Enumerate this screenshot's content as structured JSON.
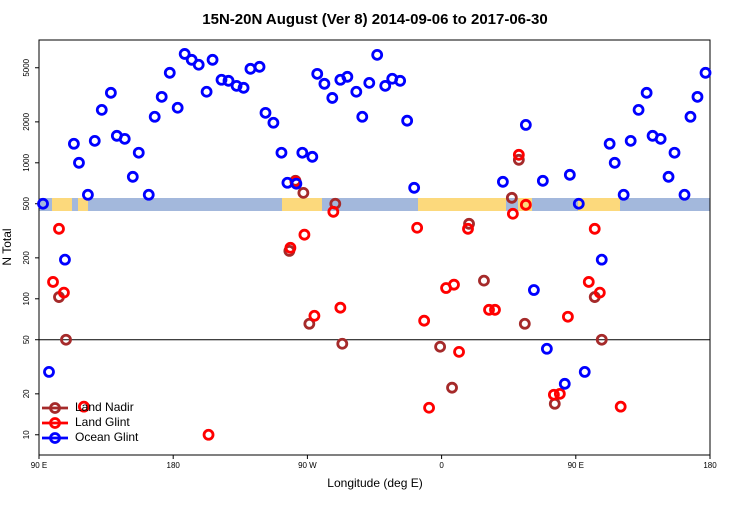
{
  "chart_data": {
    "type": "scatter",
    "title": "15N-20N August (Ver 8)   2014-09-06 to 2017-06-30",
    "xlabel": "Longitude (deg E)",
    "ylabel": "N Total",
    "log_y": true,
    "legend": "lower left",
    "hline": 50,
    "xlim": [
      90,
      540
    ],
    "xticks": [
      {
        "value": 90,
        "label": "90 E"
      },
      180,
      {
        "value": 270,
        "label": "90 W"
      },
      {
        "value": 360,
        "label": "0"
      },
      {
        "value": 450,
        "label": "90 E"
      },
      {
        "value": 540,
        "label": "180"
      }
    ],
    "ylim": [
      7.1,
      8000
    ],
    "yticks": [
      10,
      20,
      50,
      100,
      200,
      500,
      1000,
      2000,
      5000
    ],
    "series": [
      {
        "name": "Land Nadir",
        "color": "#a52a2a",
        "x": [
          103.4,
          108.1,
          257.9,
          262.0,
          267.3,
          271.3,
          288.7,
          293.4,
          359.0,
          367.0,
          378.4,
          388.4,
          407.1,
          411.8,
          415.8,
          435.9,
          462.7,
          467.4
        ],
        "values": [
          103,
          50,
          225,
          737,
          601,
          65.5,
          500,
          46.7,
          44.4,
          22.2,
          356,
          136,
          553,
          1052,
          65.5,
          16.9,
          103,
          50
        ]
      },
      {
        "name": "Land Glint",
        "color": "#ff0000",
        "x": [
          99.4,
          103.4,
          106.7,
          120.1,
          203.7,
          258.6,
          262.0,
          268.0,
          274.7,
          287.4,
          292.1,
          343.6,
          348.3,
          351.6,
          363.0,
          368.3,
          371.7,
          377.7,
          391.8,
          395.8,
          407.8,
          411.8,
          416.5,
          435.3,
          439.3,
          444.7,
          458.7,
          462.7,
          466.1,
          480.1
        ],
        "values": [
          133,
          327,
          111,
          16.1,
          10,
          237,
          725,
          296,
          75,
          436,
          86,
          333,
          69,
          15.8,
          120,
          127,
          40.7,
          327,
          83,
          83,
          422,
          1145,
          491,
          19.7,
          20,
          73.8,
          133,
          327,
          111,
          16.1
        ]
      },
      {
        "name": "Ocean Glint",
        "color": "#0000ff",
        "x": [
          92.7,
          96.7,
          107.4,
          113.4,
          116.8,
          122.8,
          127.4,
          132.1,
          138.2,
          142.2,
          147.5,
          152.9,
          156.9,
          163.6,
          167.6,
          172.3,
          177.7,
          183.0,
          187.7,
          192.4,
          197.1,
          202.4,
          206.4,
          212.4,
          217.1,
          222.5,
          227.2,
          231.8,
          237.9,
          241.9,
          247.2,
          252.6,
          256.6,
          262.6,
          266.6,
          273.3,
          276.6,
          281.4,
          286.7,
          292.1,
          296.8,
          302.8,
          306.8,
          311.5,
          316.8,
          322.2,
          326.9,
          332.2,
          336.9,
          341.6,
          401.1,
          416.5,
          421.9,
          427.9,
          430.6,
          442.6,
          446.0,
          452.0,
          456.0,
          467.4,
          472.7,
          476.1,
          482.1,
          486.8,
          492.1,
          497.5,
          501.5,
          506.9,
          512.2,
          516.2,
          522.9,
          526.9,
          531.6,
          537.0
        ],
        "values": [
          500,
          29,
          194,
          1380,
          1000,
          582,
          1450,
          2450,
          3270,
          1580,
          1500,
          789,
          1186,
          582,
          2180,
          3055,
          4590,
          2540,
          6320,
          5720,
          5260,
          3330,
          5720,
          4080,
          4010,
          3680,
          3560,
          4910,
          5080,
          2330,
          1970,
          1186,
          713,
          702,
          1186,
          1107,
          4510,
          3810,
          3000,
          4080,
          4290,
          3330,
          2180,
          3870,
          6220,
          3680,
          4150,
          4010,
          2040,
          655,
          725,
          1900,
          116,
          737,
          42.9,
          23.7,
          816,
          500,
          29,
          194,
          1380,
          1000,
          582,
          1450,
          2450,
          3270,
          1580,
          1500,
          789,
          1186,
          582,
          2180,
          3055,
          4590
        ]
      }
    ]
  }
}
